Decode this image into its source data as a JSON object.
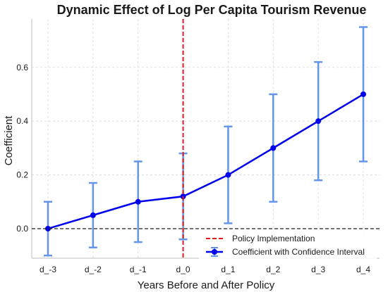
{
  "chart_data": {
    "type": "line",
    "title": "Dynamic Effect of Log Per Capita Tourism Revenue",
    "xlabel": "Years Before and After Policy",
    "ylabel": "Coefficient",
    "categories": [
      "d_-3",
      "d_-2",
      "d_-1",
      "d_0",
      "d_1",
      "d_2",
      "d_3",
      "d_4"
    ],
    "series": [
      {
        "name": "Coefficient with Confidence Interval",
        "values": [
          0.0,
          0.05,
          0.1,
          0.12,
          0.2,
          0.3,
          0.4,
          0.5
        ],
        "ci_lower": [
          -0.1,
          -0.07,
          -0.05,
          -0.04,
          0.02,
          0.1,
          0.18,
          0.25
        ],
        "ci_upper": [
          0.1,
          0.17,
          0.25,
          0.28,
          0.38,
          0.5,
          0.62,
          0.75
        ],
        "color": "#0000ee",
        "errorbar_color": "#6495ed"
      }
    ],
    "policy_line": {
      "category": "d_0",
      "label": "Policy Implementation",
      "color": "#e31a1c"
    },
    "zero_line_color": "#222222",
    "yticks": [
      0.0,
      0.2,
      0.4,
      0.6
    ],
    "ytick_labels": [
      "0.0",
      "0.2",
      "0.4",
      "0.6"
    ],
    "ylim": [
      -0.11,
      0.78
    ],
    "grid": true,
    "legend_position": "bottom-right"
  }
}
